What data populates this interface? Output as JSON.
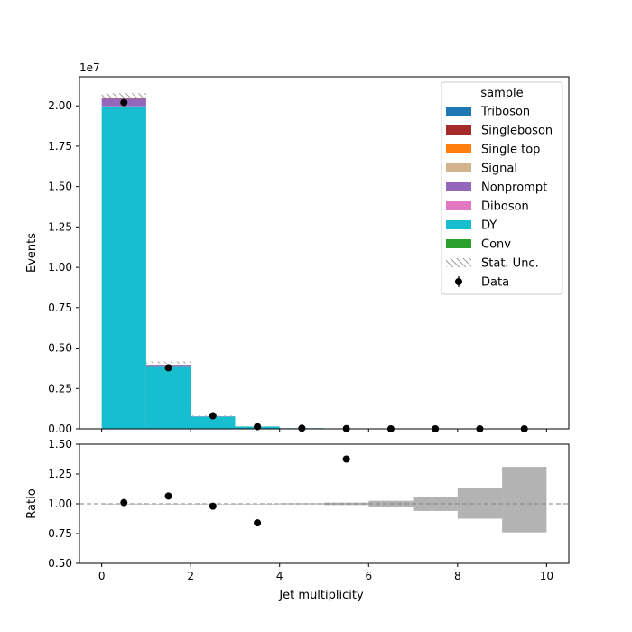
{
  "chart_data": [
    {
      "type": "bar",
      "stacked": true,
      "bin_edges": [
        0,
        1,
        2,
        3,
        4,
        5,
        6,
        7,
        8,
        9,
        10
      ],
      "xlim": [
        -0.5,
        10.5
      ],
      "ylim": [
        0,
        21800000
      ],
      "ylabel": "Events",
      "offset_label": "1e7",
      "y_scale_factor": 10000000,
      "y_ticks": [
        0,
        2500000,
        5000000,
        7500000,
        10000000,
        12500000,
        15000000,
        17500000,
        20000000
      ],
      "y_tick_labels": [
        "0.00",
        "0.25",
        "0.50",
        "0.75",
        "1.00",
        "1.25",
        "1.50",
        "1.75",
        "2.00"
      ],
      "legend": {
        "title": "sample",
        "placement": "top-right",
        "entries": [
          {
            "name": "Triboson",
            "color": "#1f77b4",
            "kind": "patch"
          },
          {
            "name": "Singleboson",
            "color": "#a52a2a",
            "kind": "patch"
          },
          {
            "name": "Single top",
            "color": "#ff7f0e",
            "kind": "patch"
          },
          {
            "name": "Signal",
            "color": "#d2b48c",
            "kind": "patch"
          },
          {
            "name": "Nonprompt",
            "color": "#9467bd",
            "kind": "patch"
          },
          {
            "name": "Diboson",
            "color": "#e377c2",
            "kind": "patch"
          },
          {
            "name": "DY",
            "color": "#17becf",
            "kind": "patch"
          },
          {
            "name": "Conv",
            "color": "#2ca02c",
            "kind": "patch"
          },
          {
            "name": "Stat. Unc.",
            "color": "#808080",
            "kind": "hatch"
          },
          {
            "name": "Data",
            "color": "#000000",
            "kind": "marker"
          }
        ]
      },
      "series": [
        {
          "name": "Conv",
          "color": "#2ca02c",
          "values": [
            20000,
            5000,
            1000,
            300,
            50,
            10,
            2,
            0,
            0,
            0
          ]
        },
        {
          "name": "DY",
          "color": "#17becf",
          "values": [
            19950000,
            3880000,
            760000,
            140000,
            38000,
            11000,
            3000,
            800,
            200,
            50
          ]
        },
        {
          "name": "Diboson",
          "color": "#e377c2",
          "values": [
            10000,
            5000,
            2000,
            800,
            300,
            100,
            30,
            10,
            3,
            1
          ]
        },
        {
          "name": "Nonprompt",
          "color": "#9467bd",
          "values": [
            450000,
            70000,
            15000,
            3500,
            800,
            200,
            50,
            10,
            3,
            1
          ]
        },
        {
          "name": "Signal",
          "color": "#d2b48c",
          "values": [
            500,
            300,
            150,
            60,
            20,
            8,
            3,
            1,
            0,
            0
          ]
        },
        {
          "name": "Single top",
          "color": "#ff7f0e",
          "values": [
            5000,
            4000,
            3000,
            1500,
            500,
            150,
            40,
            10,
            3,
            1
          ]
        },
        {
          "name": "Singleboson",
          "color": "#a52a2a",
          "values": [
            20000,
            4000,
            800,
            150,
            40,
            10,
            3,
            1,
            0,
            0
          ]
        },
        {
          "name": "Triboson",
          "color": "#1f77b4",
          "values": [
            200,
            150,
            80,
            40,
            15,
            5,
            2,
            1,
            0,
            0
          ]
        }
      ],
      "stat_unc": {
        "name": "Stat. Unc.",
        "total": [
          20650000,
          4100000,
          800000,
          152000,
          40000,
          11500,
          3100,
          800,
          200,
          50
        ],
        "half_width": [
          130000,
          60000,
          20000,
          4000,
          1200,
          400,
          120,
          40,
          15,
          6
        ]
      },
      "data": {
        "name": "Data",
        "x": [
          0.5,
          1.5,
          2.5,
          3.5,
          4.5,
          5.5,
          6.5,
          7.5,
          8.5,
          9.5
        ],
        "y": [
          20200000,
          3780000,
          810000,
          135000,
          40000,
          16000,
          3000,
          800,
          200,
          50
        ]
      }
    },
    {
      "type": "scatter",
      "xlabel": "Jet multiplicity",
      "ylabel": "Ratio",
      "xlim": [
        -0.5,
        10.5
      ],
      "ylim": [
        0.5,
        1.5
      ],
      "x_ticks": [
        0,
        2,
        4,
        6,
        8,
        10
      ],
      "x_tick_labels": [
        "0",
        "2",
        "4",
        "6",
        "8",
        "10"
      ],
      "y_ticks": [
        0.5,
        0.75,
        1.0,
        1.25,
        1.5
      ],
      "y_tick_labels": [
        "0.50",
        "0.75",
        "1.00",
        "1.25",
        "1.50"
      ],
      "reference_line": 1.0,
      "points": {
        "x": [
          0.5,
          1.5,
          2.5,
          3.5,
          5.5
        ],
        "y": [
          1.01,
          1.065,
          0.98,
          0.84,
          1.375
        ]
      },
      "uncertainty_band": {
        "bin_edges": [
          0,
          1,
          2,
          3,
          4,
          5,
          6,
          7,
          8,
          9,
          10
        ],
        "low": [
          1.0,
          1.0,
          1.0,
          1.0,
          0.995,
          0.99,
          0.975,
          0.94,
          0.875,
          0.76
        ],
        "high": [
          1.0,
          1.0,
          1.0,
          1.0,
          1.005,
          1.01,
          1.025,
          1.06,
          1.13,
          1.31
        ],
        "color": "#b3b3b3"
      }
    }
  ]
}
